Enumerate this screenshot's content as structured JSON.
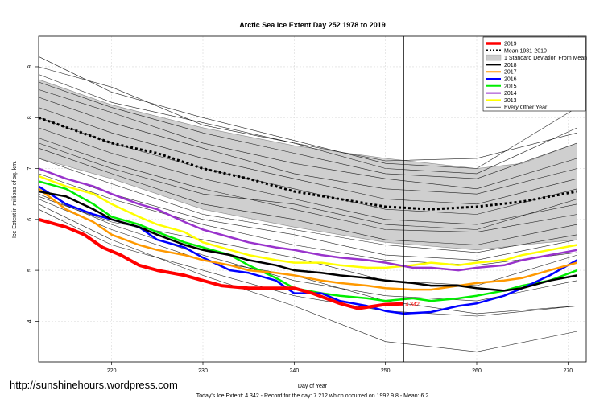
{
  "chart_data": {
    "type": "line",
    "title": "Arctic Sea Ice Extent Day 252 1978 to 2019",
    "xlabel": "Day of Year",
    "ylabel": "Ice Extent in millions of sq. km.",
    "xlim": [
      212,
      272
    ],
    "ylim": [
      3.2,
      9.6
    ],
    "xticks": [
      220,
      230,
      240,
      250,
      260,
      270
    ],
    "yticks": [
      4,
      5,
      6,
      7,
      8,
      9
    ],
    "grid": true,
    "legend_placement": "top-right",
    "marker_day": 252,
    "current_value": 4.342,
    "current_value_label": "4.342",
    "footer": "Today's Ice Extent: 4.342  - Record for the day: 7.212 which occurred on 1992 9 8  - Mean: 6.2",
    "watermark": "http://sunshinehours.wordpress.com",
    "legend": [
      {
        "label": "2019",
        "color": "#ff0000",
        "style": "thick"
      },
      {
        "label": "Mean 1981-2010",
        "color": "#000000",
        "style": "dotted"
      },
      {
        "label": "1 Standard Deviation From Mean",
        "color": "#cccccc",
        "style": "band"
      },
      {
        "label": "2018",
        "color": "#000000",
        "style": "solid"
      },
      {
        "label": "2017",
        "color": "#ff9900",
        "style": "solid"
      },
      {
        "label": "2016",
        "color": "#0000ff",
        "style": "solid"
      },
      {
        "label": "2015",
        "color": "#00ee00",
        "style": "solid"
      },
      {
        "label": "2014",
        "color": "#9933cc",
        "style": "solid"
      },
      {
        "label": "2013",
        "color": "#ffff00",
        "style": "solid"
      },
      {
        "label": "Every Other Year",
        "color": "#000000",
        "style": "thin"
      }
    ],
    "std_band": {
      "x": [
        212,
        220,
        230,
        240,
        250,
        260,
        265,
        271
      ],
      "upper": [
        8.75,
        8.25,
        7.8,
        7.45,
        7.2,
        7.0,
        7.1,
        7.5
      ],
      "lower": [
        7.2,
        6.8,
        6.2,
        5.85,
        5.55,
        5.4,
        5.5,
        5.6
      ]
    },
    "mean": {
      "x": [
        212,
        216,
        220,
        225,
        230,
        235,
        240,
        245,
        250,
        255,
        260,
        265,
        271
      ],
      "values": [
        8.0,
        7.75,
        7.5,
        7.3,
        7.0,
        6.8,
        6.55,
        6.4,
        6.25,
        6.2,
        6.25,
        6.35,
        6.55
      ]
    },
    "series": [
      {
        "name": "2019",
        "color": "#ff0000",
        "width": 4,
        "x": [
          212,
          215,
          217,
          219,
          221,
          223,
          225,
          228,
          230,
          232,
          235,
          238,
          240,
          242,
          245,
          247,
          250,
          252
        ],
        "values": [
          6.0,
          5.85,
          5.7,
          5.45,
          5.3,
          5.1,
          5.0,
          4.9,
          4.8,
          4.7,
          4.65,
          4.65,
          4.65,
          4.55,
          4.35,
          4.25,
          4.33,
          4.342
        ]
      },
      {
        "name": "2018",
        "color": "#000000",
        "width": 2.5,
        "x": [
          212,
          215,
          218,
          220,
          223,
          225,
          228,
          230,
          233,
          235,
          238,
          240,
          243,
          245,
          248,
          250,
          253,
          255,
          258,
          260,
          263,
          265,
          268,
          271
        ],
        "values": [
          6.55,
          6.45,
          6.2,
          6.0,
          5.85,
          5.7,
          5.5,
          5.4,
          5.3,
          5.2,
          5.1,
          5.0,
          4.95,
          4.9,
          4.85,
          4.8,
          4.75,
          4.7,
          4.7,
          4.65,
          4.6,
          4.65,
          4.8,
          4.9
        ]
      },
      {
        "name": "2017",
        "color": "#ff9900",
        "width": 2.5,
        "x": [
          212,
          215,
          218,
          220,
          223,
          225,
          228,
          230,
          233,
          235,
          238,
          240,
          243,
          245,
          248,
          250,
          253,
          255,
          258,
          260,
          263,
          265,
          268,
          271
        ],
        "values": [
          6.6,
          6.2,
          5.95,
          5.7,
          5.5,
          5.4,
          5.3,
          5.2,
          5.1,
          5.0,
          4.95,
          4.9,
          4.8,
          4.75,
          4.7,
          4.65,
          4.62,
          4.62,
          4.7,
          4.75,
          4.8,
          4.85,
          5.0,
          5.15
        ]
      },
      {
        "name": "2016",
        "color": "#0000ff",
        "width": 2.5,
        "x": [
          212,
          215,
          218,
          220,
          223,
          225,
          228,
          230,
          233,
          235,
          238,
          240,
          243,
          245,
          248,
          250,
          252,
          255,
          258,
          260,
          263,
          265,
          268,
          271
        ],
        "values": [
          6.65,
          6.3,
          6.1,
          6.0,
          5.85,
          5.6,
          5.45,
          5.25,
          5.0,
          4.95,
          4.8,
          4.55,
          4.55,
          4.4,
          4.3,
          4.2,
          4.15,
          4.18,
          4.3,
          4.35,
          4.5,
          4.65,
          4.9,
          5.2
        ]
      },
      {
        "name": "2015",
        "color": "#00ee00",
        "width": 2.5,
        "x": [
          212,
          215,
          218,
          220,
          223,
          225,
          228,
          230,
          233,
          235,
          238,
          240,
          243,
          245,
          248,
          250,
          253,
          255,
          258,
          260,
          263,
          265,
          268,
          271
        ],
        "values": [
          6.75,
          6.6,
          6.3,
          6.05,
          5.9,
          5.75,
          5.55,
          5.45,
          5.3,
          5.1,
          4.85,
          4.65,
          4.55,
          4.5,
          4.45,
          4.4,
          4.45,
          4.4,
          4.45,
          4.5,
          4.6,
          4.7,
          4.8,
          5.0
        ]
      },
      {
        "name": "2014",
        "color": "#9933cc",
        "width": 2.5,
        "x": [
          212,
          215,
          218,
          220,
          223,
          225,
          228,
          230,
          233,
          235,
          238,
          240,
          243,
          245,
          248,
          250,
          253,
          255,
          258,
          260,
          263,
          265,
          268,
          271
        ],
        "values": [
          7.0,
          6.8,
          6.65,
          6.5,
          6.3,
          6.2,
          5.95,
          5.8,
          5.65,
          5.55,
          5.45,
          5.4,
          5.3,
          5.25,
          5.2,
          5.15,
          5.05,
          5.05,
          5.0,
          5.05,
          5.1,
          5.2,
          5.3,
          5.4
        ]
      },
      {
        "name": "2013",
        "color": "#ffff00",
        "width": 2.5,
        "x": [
          212,
          215,
          218,
          220,
          223,
          225,
          228,
          230,
          233,
          235,
          238,
          240,
          243,
          245,
          248,
          250,
          253,
          255,
          258,
          260,
          263,
          265,
          268,
          271
        ],
        "values": [
          6.85,
          6.65,
          6.5,
          6.3,
          6.05,
          5.9,
          5.75,
          5.55,
          5.4,
          5.3,
          5.2,
          5.15,
          5.15,
          5.1,
          5.05,
          5.05,
          5.1,
          5.15,
          5.1,
          5.15,
          5.2,
          5.3,
          5.4,
          5.5
        ]
      }
    ],
    "other_years": [
      {
        "x": [
          212,
          220,
          230,
          240,
          250,
          260,
          271
        ],
        "values": [
          9.2,
          8.5,
          8.0,
          7.55,
          7.1,
          7.0,
          8.2
        ]
      },
      {
        "x": [
          212,
          220,
          230,
          240,
          250,
          260,
          271
        ],
        "values": [
          9.0,
          8.6,
          7.85,
          7.5,
          7.15,
          7.2,
          7.7
        ]
      },
      {
        "x": [
          212,
          220,
          230,
          240,
          250,
          260,
          271
        ],
        "values": [
          8.85,
          8.3,
          7.9,
          7.5,
          7.0,
          6.9,
          7.8
        ]
      },
      {
        "x": [
          212,
          220,
          230,
          240,
          250,
          260,
          271
        ],
        "values": [
          8.7,
          8.2,
          7.7,
          7.3,
          6.9,
          6.8,
          7.5
        ]
      },
      {
        "x": [
          212,
          220,
          230,
          240,
          250,
          260,
          271
        ],
        "values": [
          8.55,
          8.1,
          7.5,
          7.1,
          6.8,
          6.6,
          7.2
        ]
      },
      {
        "x": [
          212,
          220,
          230,
          240,
          250,
          260,
          271
        ],
        "values": [
          8.4,
          7.9,
          7.4,
          6.9,
          6.6,
          6.5,
          7.0
        ]
      },
      {
        "x": [
          212,
          220,
          230,
          240,
          250,
          260,
          271
        ],
        "values": [
          8.2,
          7.7,
          7.2,
          6.8,
          6.4,
          6.3,
          6.8
        ]
      },
      {
        "x": [
          212,
          220,
          230,
          240,
          250,
          260,
          271
        ],
        "values": [
          8.0,
          7.5,
          7.0,
          6.6,
          6.2,
          6.1,
          6.6
        ]
      },
      {
        "x": [
          212,
          220,
          230,
          240,
          250,
          260,
          271
        ],
        "values": [
          7.8,
          7.3,
          6.8,
          6.4,
          6.0,
          5.9,
          6.3
        ]
      },
      {
        "x": [
          212,
          220,
          230,
          240,
          250,
          260,
          271
        ],
        "values": [
          7.6,
          7.1,
          6.6,
          6.2,
          5.8,
          5.75,
          6.1
        ]
      },
      {
        "x": [
          212,
          220,
          230,
          240,
          250,
          260,
          271
        ],
        "values": [
          7.4,
          6.9,
          6.3,
          6.0,
          5.6,
          5.5,
          5.9
        ]
      },
      {
        "x": [
          212,
          220,
          230,
          240,
          250,
          260,
          271
        ],
        "values": [
          7.2,
          6.7,
          6.1,
          5.8,
          5.5,
          5.35,
          5.7
        ]
      },
      {
        "x": [
          212,
          220,
          230,
          240,
          250,
          260,
          271
        ],
        "values": [
          6.9,
          6.4,
          5.9,
          5.5,
          5.2,
          5.1,
          5.35
        ]
      },
      {
        "x": [
          212,
          220,
          230,
          240,
          250,
          260,
          271
        ],
        "values": [
          6.5,
          5.9,
          5.3,
          4.8,
          4.5,
          4.4,
          4.8
        ]
      },
      {
        "x": [
          212,
          220,
          230,
          240,
          250,
          260,
          271
        ],
        "values": [
          6.4,
          5.8,
          5.2,
          4.9,
          4.4,
          4.15,
          4.3
        ]
      },
      {
        "x": [
          212,
          220,
          230,
          240,
          250,
          260,
          271
        ],
        "values": [
          6.3,
          5.6,
          4.9,
          4.3,
          3.6,
          3.4,
          3.8
        ]
      },
      {
        "x": [
          212,
          220,
          230,
          240,
          250,
          260,
          271
        ],
        "values": [
          6.2,
          5.5,
          5.0,
          4.5,
          4.2,
          4.1,
          4.3
        ]
      },
      {
        "x": [
          212,
          220,
          230,
          240,
          250,
          260,
          271
        ],
        "values": [
          6.45,
          5.95,
          5.6,
          5.25,
          4.8,
          4.7,
          5.3
        ]
      },
      {
        "x": [
          212,
          220,
          230,
          240,
          250,
          260,
          271
        ],
        "values": [
          7.0,
          6.5,
          6.0,
          5.7,
          5.3,
          5.2,
          5.6
        ]
      },
      {
        "x": [
          212,
          220,
          230,
          240,
          250,
          260,
          271
        ],
        "values": [
          7.5,
          7.0,
          6.5,
          6.3,
          5.9,
          5.8,
          6.4
        ]
      }
    ]
  }
}
